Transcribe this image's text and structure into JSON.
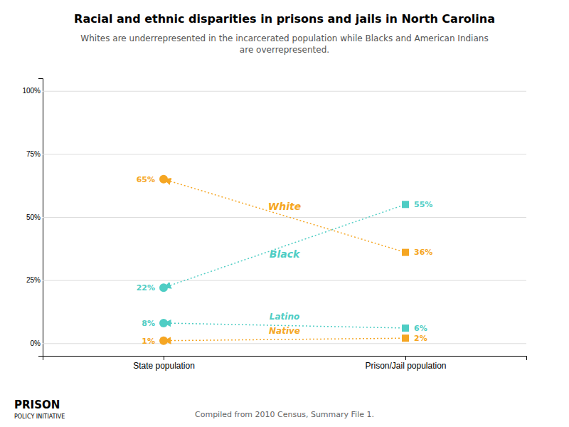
{
  "chart_data": {
    "type": "slope",
    "title": "Racial and ethnic disparities in prisons and jails in North Carolina",
    "subtitle": "Whites are underrepresented in the incarcerated population while Blacks and American Indians\nare overrepresented.",
    "categories": [
      "State population",
      "Prison/Jail population"
    ],
    "series": [
      {
        "name": "White",
        "color": "#f5a623",
        "line_style": "dotted",
        "values": [
          65,
          36
        ],
        "value_labels": [
          "65%",
          "36%"
        ]
      },
      {
        "name": "Black",
        "color": "#4ecdc4",
        "line_style": "dotted",
        "values": [
          22,
          55
        ],
        "value_labels": [
          "22%",
          "55%"
        ]
      },
      {
        "name": "Latino",
        "color": "#4ecdc4",
        "line_style": "dotted",
        "values": [
          8,
          6
        ],
        "value_labels": [
          "8%",
          "6%"
        ]
      },
      {
        "name": "Native",
        "color": "#f5a623",
        "line_style": "dotted",
        "values": [
          1,
          2
        ],
        "value_labels": [
          "1%",
          "2%"
        ]
      }
    ],
    "ylim": [
      -5,
      105
    ],
    "yticks": [
      {
        "value": 0,
        "label": "0%"
      },
      {
        "value": 25,
        "label": "25%"
      },
      {
        "value": 50,
        "label": "50%"
      },
      {
        "value": 75,
        "label": "75%"
      },
      {
        "value": 100,
        "label": "100%"
      }
    ],
    "grid": true,
    "data_labels": true,
    "annotations": [
      "Compiled from 2010 Census, Summary File 1.",
      "PRISON",
      "POLICY INITIATIVE"
    ]
  }
}
